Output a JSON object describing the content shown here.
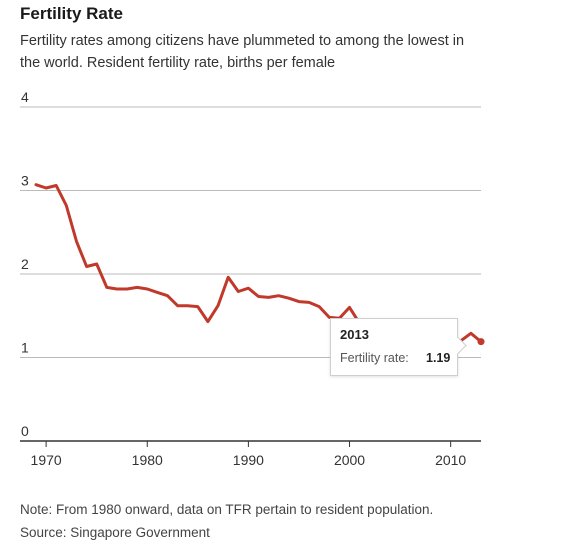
{
  "header": {
    "title": "Fertility Rate",
    "subtitle": "Fertility rates among citizens have plummeted to among the lowest in the world. Resident fertility rate, births per female"
  },
  "tooltip": {
    "year": "2013",
    "label": "Fertility rate:",
    "value": "1.19"
  },
  "footer": {
    "note": "Note: From 1980 onward, data on TFR pertain to resident population.",
    "source": "Source: Singapore Government"
  },
  "colors": {
    "line": "#c0392b",
    "grid": "#bbbbbb",
    "axis": "#333333"
  },
  "chart_data": {
    "type": "line",
    "title": "Fertility Rate",
    "xlabel": "",
    "ylabel": "",
    "xlim": [
      1969,
      2013
    ],
    "ylim": [
      0,
      4
    ],
    "yticks": [
      0,
      1,
      2,
      3,
      4
    ],
    "xticks": [
      1970,
      1980,
      1990,
      2000,
      2010
    ],
    "grid": true,
    "series": [
      {
        "x": [
          1969,
          1970,
          1971,
          1972,
          1973,
          1974,
          1975,
          1976,
          1977,
          1978,
          1979,
          1980,
          1981,
          1982,
          1983,
          1984,
          1985,
          1986,
          1987,
          1988,
          1989,
          1990,
          1991,
          1992,
          1993,
          1994,
          1995,
          1996,
          1997,
          1998,
          1999,
          2000,
          2001,
          2002,
          2003,
          2004,
          2005,
          2006,
          2007,
          2008,
          2009,
          2010,
          2011,
          2012,
          2013
        ],
        "y": [
          3.07,
          3.03,
          3.06,
          2.82,
          2.39,
          2.09,
          2.12,
          1.84,
          1.82,
          1.82,
          1.84,
          1.82,
          1.78,
          1.74,
          1.62,
          1.62,
          1.61,
          1.43,
          1.62,
          1.96,
          1.79,
          1.83,
          1.73,
          1.72,
          1.74,
          1.71,
          1.67,
          1.66,
          1.61,
          1.48,
          1.47,
          1.6,
          1.41,
          1.37,
          1.27,
          1.26,
          1.26,
          1.28,
          1.29,
          1.28,
          1.22,
          1.15,
          1.2,
          1.29,
          1.19
        ]
      }
    ],
    "highlight": {
      "x": 2013,
      "y": 1.19
    }
  }
}
